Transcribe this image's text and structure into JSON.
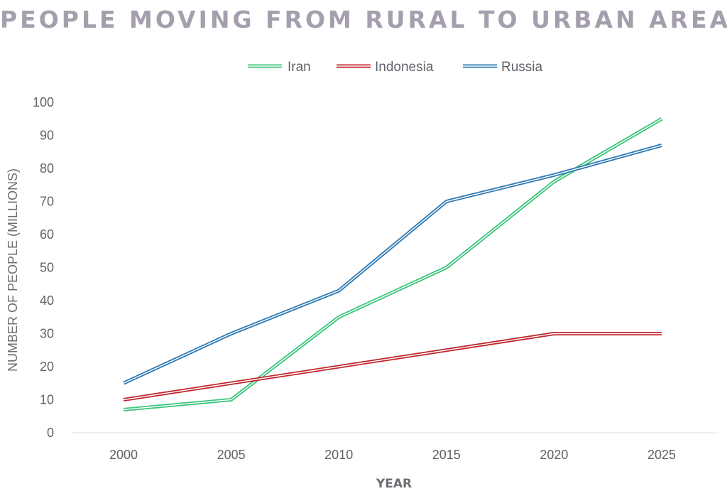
{
  "chart_data": {
    "type": "line",
    "title": "PEOPLE MOVING FROM RURAL TO URBAN AREAS",
    "xlabel": "YEAR",
    "ylabel": "NUMBER OF PEOPLE (MILLIONS)",
    "categories": [
      "2000",
      "2005",
      "2010",
      "2015",
      "2020",
      "2025"
    ],
    "ylim": [
      0,
      100
    ],
    "yticks": [
      "0",
      "10",
      "20",
      "30",
      "40",
      "50",
      "60",
      "70",
      "80",
      "90",
      "100"
    ],
    "grid": false,
    "legend_position": "top-center",
    "series": [
      {
        "name": "Iran",
        "color": "#3cc47c",
        "values": [
          7,
          10,
          35,
          50,
          76,
          95
        ]
      },
      {
        "name": "Indonesia",
        "color": "#c0272d",
        "values": [
          10,
          15,
          20,
          25,
          30,
          30
        ]
      },
      {
        "name": "Russia",
        "color": "#2e7ab4",
        "values": [
          15,
          30,
          43,
          70,
          78,
          87
        ]
      }
    ]
  }
}
